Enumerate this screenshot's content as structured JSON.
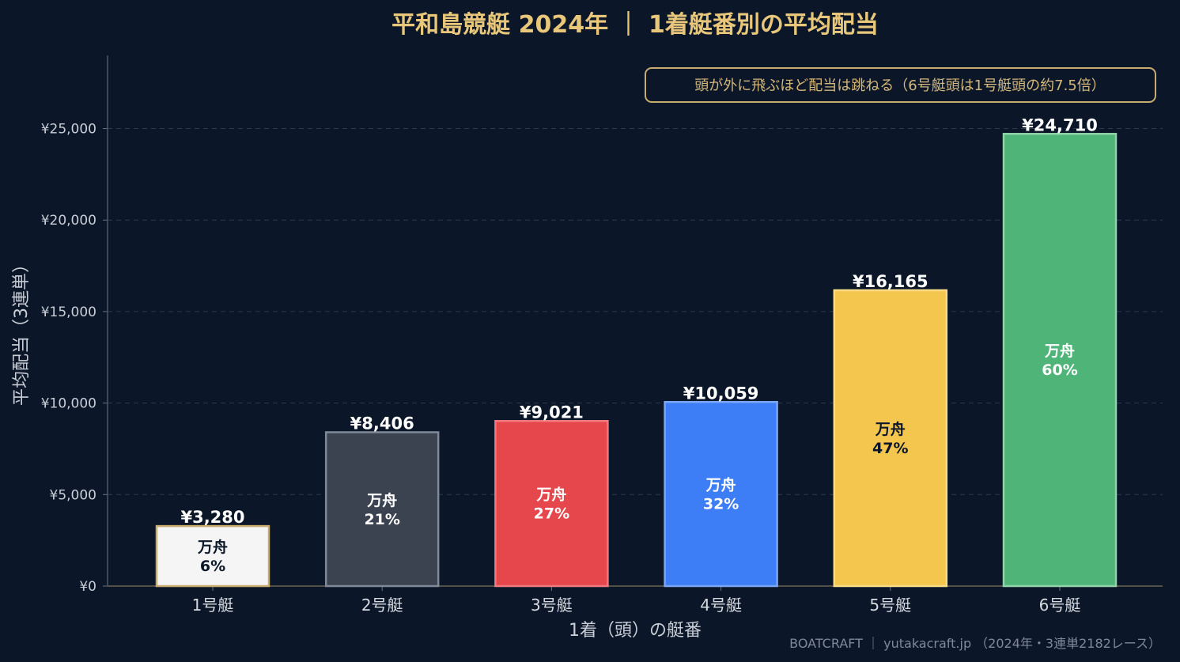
{
  "chart_data": {
    "type": "bar",
    "title": "平和島競艇 2024年 ｜ 1着艇番別の平均配当",
    "xlabel": "1着（頭）の艇番",
    "ylabel": "平均配当（3連単）",
    "categories": [
      "1号艇",
      "2号艇",
      "3号艇",
      "4号艇",
      "5号艇",
      "6号艇"
    ],
    "values": [
      3280,
      8406,
      9021,
      10059,
      16165,
      24710
    ],
    "value_labels": [
      "¥3,280",
      "¥8,406",
      "¥9,021",
      "¥10,059",
      "¥16,165",
      "¥24,710"
    ],
    "manshu_label": "万舟",
    "manshu_rates": [
      "6%",
      "21%",
      "27%",
      "32%",
      "47%",
      "60%"
    ],
    "ylim": [
      0,
      29000
    ],
    "yticks": [
      0,
      5000,
      10000,
      15000,
      20000,
      25000
    ],
    "ytick_labels": [
      "¥0",
      "¥5,000",
      "¥10,000",
      "¥15,000",
      "¥20,000",
      "¥25,000"
    ],
    "grid": true,
    "bar_colors": [
      "#f5f5f5",
      "#3b4350",
      "#e6474d",
      "#3d7df5",
      "#f5c64d",
      "#4fb478"
    ],
    "bar_edge_colors": [
      "#c8ab6e",
      "#7f8896",
      "#f07a7e",
      "#78a7f8",
      "#f9dc85",
      "#8ed4a8"
    ],
    "inner_text_colors": [
      "#0b1729",
      "#ffffff",
      "#ffffff",
      "#ffffff",
      "#0b1729",
      "#ffffff"
    ],
    "annotation": "頭が外に飛ぶほど配当は跳ねる（6号艇頭は1号艇頭の約7.5倍）"
  },
  "footer": {
    "credit": "BOATCRAFT ｜ yutakacraft.jp （2024年・3連単2182レース）"
  },
  "colors": {
    "background": "#0b1729",
    "title": "#e8c77a",
    "annotation_border": "#c8ab6e",
    "grid": "#2c3a4c"
  }
}
